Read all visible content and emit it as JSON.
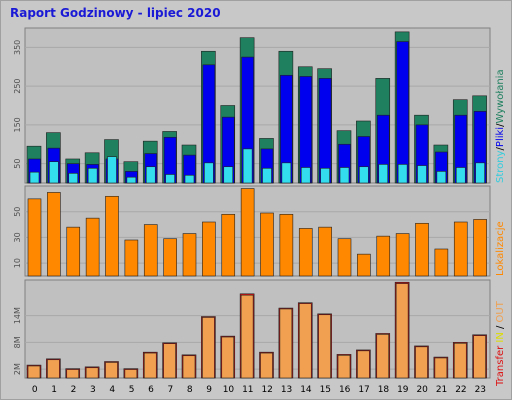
{
  "title": "Raport Godzinowy -  lipiec 2020",
  "colors": {
    "strony": "#1f8060",
    "pliki": "#0000ee",
    "wywolania": "#33ddee",
    "lokalizacje": "#ff8800",
    "transfer_in": "#dd1111",
    "transfer_out": "#f0a050",
    "title": "#1a1ad6"
  },
  "chart_data": [
    {
      "type": "bar",
      "name": "hits-panel",
      "categories": [
        "0",
        "1",
        "2",
        "3",
        "4",
        "5",
        "6",
        "7",
        "8",
        "9",
        "10",
        "11",
        "12",
        "13",
        "14",
        "15",
        "16",
        "17",
        "18",
        "19",
        "20",
        "21",
        "22",
        "23"
      ],
      "yticks": [
        "50",
        "150",
        "250",
        "350"
      ],
      "ylim": [
        0,
        400
      ],
      "side_label": {
        "parts": [
          "Strony",
          "/",
          "Pliki",
          "/",
          "Wywołania"
        ]
      },
      "series": [
        {
          "name": "Strony",
          "values": [
            95,
            130,
            62,
            78,
            112,
            55,
            108,
            133,
            98,
            340,
            200,
            375,
            115,
            340,
            300,
            295,
            135,
            160,
            270,
            390,
            175,
            98,
            215,
            225
          ]
        },
        {
          "name": "Pliki",
          "values": [
            62,
            90,
            50,
            48,
            62,
            30,
            76,
            118,
            72,
            305,
            170,
            325,
            88,
            278,
            275,
            270,
            100,
            120,
            175,
            365,
            150,
            80,
            175,
            185
          ]
        },
        {
          "name": "Wywołania",
          "values": [
            28,
            55,
            25,
            38,
            68,
            15,
            42,
            22,
            20,
            52,
            42,
            88,
            38,
            52,
            40,
            38,
            40,
            42,
            48,
            48,
            45,
            30,
            40,
            52
          ]
        }
      ]
    },
    {
      "type": "bar",
      "name": "locations-panel",
      "categories": [
        "0",
        "1",
        "2",
        "3",
        "4",
        "5",
        "6",
        "7",
        "8",
        "9",
        "10",
        "11",
        "12",
        "13",
        "14",
        "15",
        "16",
        "17",
        "18",
        "19",
        "20",
        "21",
        "22",
        "23"
      ],
      "yticks": [
        "10",
        "30",
        "50"
      ],
      "ylim": [
        0,
        70
      ],
      "side_label": {
        "parts": [
          "Lokalizacje"
        ]
      },
      "series": [
        {
          "name": "Lokalizacje",
          "values": [
            60,
            65,
            38,
            45,
            62,
            28,
            40,
            29,
            33,
            42,
            48,
            68,
            49,
            48,
            37,
            38,
            29,
            17,
            31,
            33,
            41,
            21,
            42,
            44
          ]
        }
      ]
    },
    {
      "type": "bar",
      "name": "transfer-panel",
      "categories": [
        "0",
        "1",
        "2",
        "3",
        "4",
        "5",
        "6",
        "7",
        "8",
        "9",
        "10",
        "11",
        "12",
        "13",
        "14",
        "15",
        "16",
        "17",
        "18",
        "19",
        "20",
        "21",
        "22",
        "23"
      ],
      "xticks": [
        "0",
        "1",
        "2",
        "3",
        "4",
        "5",
        "6",
        "7",
        "8",
        "9",
        "10",
        "11",
        "12",
        "13",
        "14",
        "15",
        "16",
        "17",
        "18",
        "19",
        "20",
        "21",
        "22",
        "23"
      ],
      "yticks": [
        "2M",
        "8M",
        "14M"
      ],
      "ylim": [
        0,
        22
      ],
      "side_label": {
        "parts": [
          "Transfer",
          " IN",
          " / ",
          "OUT"
        ]
      },
      "series": [
        {
          "name": "IN",
          "values": [
            2.9,
            4.3,
            2.1,
            2.5,
            3.7,
            2.1,
            5.8,
            7.9,
            5.2,
            13.8,
            9.4,
            18.9,
            5.8,
            15.7,
            16.9,
            14.4,
            5.3,
            6.3,
            10.0,
            21.5,
            7.2,
            4.7,
            8.0,
            9.7
          ]
        },
        {
          "name": "OUT",
          "values": [
            2.7,
            4.1,
            1.9,
            2.3,
            3.5,
            1.9,
            5.6,
            7.7,
            5.0,
            13.6,
            9.2,
            18.6,
            5.6,
            15.5,
            16.7,
            14.2,
            5.1,
            6.1,
            9.8,
            21.2,
            7.0,
            4.5,
            7.8,
            9.5
          ]
        }
      ]
    }
  ]
}
